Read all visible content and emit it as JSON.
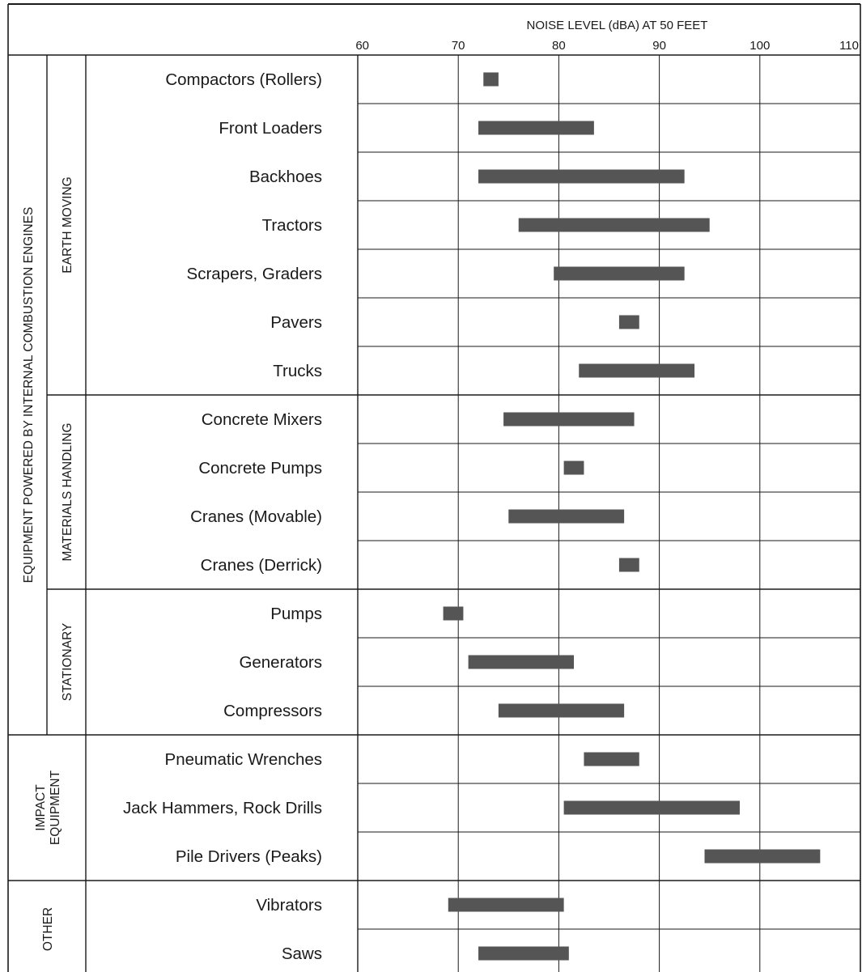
{
  "chart_data": {
    "type": "bar",
    "orientation": "horizontal-range",
    "title": "",
    "xlabel": "NOISE LEVEL (dBA) AT 50 FEET",
    "ylabel": "",
    "xlim": [
      60,
      110
    ],
    "xticks": [
      60,
      70,
      80,
      90,
      100,
      110
    ],
    "grid": true,
    "legend": "none",
    "bar_color": "#555555",
    "outer_group": "EQUIPMENT POWERED BY INTERNAL COMBUSTION ENGINES",
    "groups": [
      {
        "label": "EARTH MOVING",
        "lines": [
          "EARTH MOVING"
        ],
        "outer": true,
        "rows": [
          {
            "label": "Compactors (Rollers)",
            "low": 72.5,
            "high": 74
          },
          {
            "label": "Front Loaders",
            "low": 72,
            "high": 83.5
          },
          {
            "label": "Backhoes",
            "low": 72,
            "high": 92.5
          },
          {
            "label": "Tractors",
            "low": 76,
            "high": 95
          },
          {
            "label": "Scrapers, Graders",
            "low": 79.5,
            "high": 92.5
          },
          {
            "label": "Pavers",
            "low": 86,
            "high": 88
          },
          {
            "label": "Trucks",
            "low": 82,
            "high": 93.5
          }
        ]
      },
      {
        "label": "MATERIALS HANDLING",
        "lines": [
          "MATERIALS HANDLING"
        ],
        "outer": true,
        "rows": [
          {
            "label": "Concrete Mixers",
            "low": 74.5,
            "high": 87.5
          },
          {
            "label": "Concrete Pumps",
            "low": 80.5,
            "high": 82.5
          },
          {
            "label": "Cranes (Movable)",
            "low": 75,
            "high": 86.5
          },
          {
            "label": "Cranes (Derrick)",
            "low": 86,
            "high": 88
          }
        ]
      },
      {
        "label": "STATIONARY",
        "lines": [
          "STATIONARY"
        ],
        "outer": true,
        "rows": [
          {
            "label": "Pumps",
            "low": 68.5,
            "high": 70.5
          },
          {
            "label": "Generators",
            "low": 71,
            "high": 81.5
          },
          {
            "label": "Compressors",
            "low": 74,
            "high": 86.5
          }
        ]
      },
      {
        "label": "IMPACT EQUIPMENT",
        "lines": [
          "IMPACT",
          "EQUIPMENT"
        ],
        "outer": false,
        "rows": [
          {
            "label": "Pneumatic Wrenches",
            "low": 82.5,
            "high": 88
          },
          {
            "label": "Jack Hammers, Rock Drills",
            "low": 80.5,
            "high": 98
          },
          {
            "label": "Pile Drivers (Peaks)",
            "low": 94.5,
            "high": 106
          }
        ]
      },
      {
        "label": "OTHER",
        "lines": [
          "OTHER"
        ],
        "outer": false,
        "rows": [
          {
            "label": "Vibrators",
            "low": 69,
            "high": 80.5
          },
          {
            "label": "Saws",
            "low": 72,
            "high": 81
          }
        ]
      }
    ]
  }
}
